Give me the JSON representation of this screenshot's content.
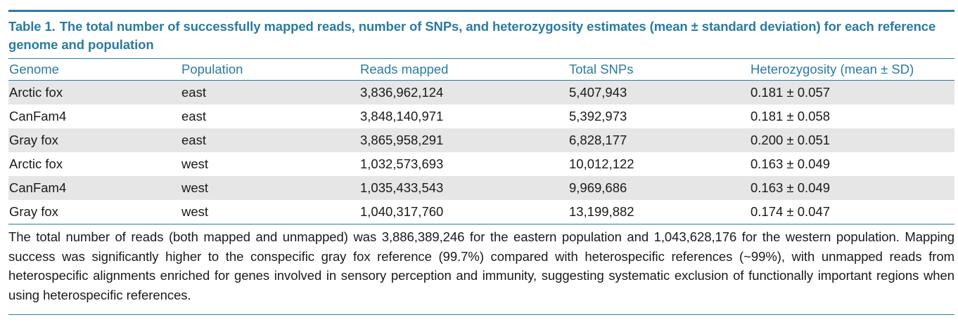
{
  "table": {
    "label": "Table 1.",
    "caption": "The total number of successfully mapped reads, number of SNPs, and heterozygosity estimates (mean ± standard deviation) for each reference genome and population",
    "columns": [
      "Genome",
      "Population",
      "Reads mapped",
      "Total SNPs",
      "Heterozygosity (mean ± SD)"
    ],
    "rows": [
      [
        "Arctic fox",
        "east",
        "3,836,962,124",
        "5,407,943",
        "0.181 ± 0.057"
      ],
      [
        "CanFam4",
        "east",
        "3,848,140,971",
        "5,392,973",
        "0.181 ± 0.058"
      ],
      [
        "Gray fox",
        "east",
        "3,865,958,291",
        "6,828,177",
        "0.200 ± 0.051"
      ],
      [
        "Arctic fox",
        "west",
        "1,032,573,693",
        "10,012,122",
        "0.163 ± 0.049"
      ],
      [
        "CanFam4",
        "west",
        "1,035,433,543",
        "9,969,686",
        "0.163 ± 0.049"
      ],
      [
        "Gray fox",
        "west",
        "1,040,317,760",
        "13,199,882",
        "0.174 ± 0.047"
      ]
    ],
    "footnote": "The total number of reads (both mapped and unmapped) was 3,886,389,246 for the eastern population and 1,043,628,176 for the western population. Mapping success was significantly higher to the conspecific gray fox reference (99.7%) compared with heterospecific references (~99%), with unmapped reads from heterospecific alignments enriched for genes involved in sensory perception and immunity, suggesting systematic exclusion of functionally important regions when using heterospecific references."
  },
  "colors": {
    "accent": "#2a7ba0",
    "stripe": "#e6e6e6",
    "text": "#1a1a1a"
  }
}
